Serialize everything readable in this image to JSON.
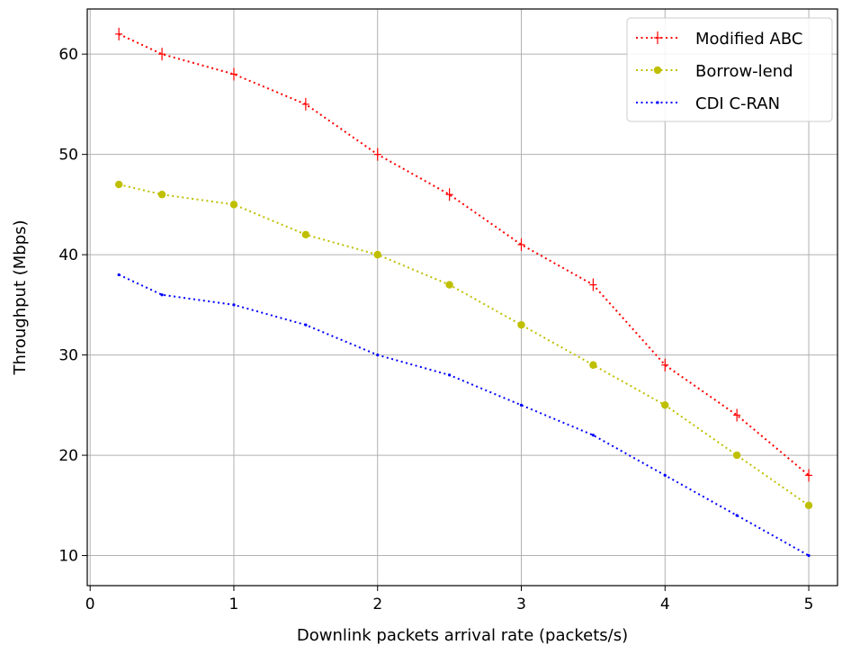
{
  "chart_data": {
    "type": "line",
    "xlabel": "Downlink packets arrival rate (packets/s)",
    "ylabel": "Throughput (Mbps)",
    "xlim": [
      -0.02,
      5.2
    ],
    "ylim": [
      7,
      64.5
    ],
    "xticks": [
      0,
      1,
      2,
      3,
      4,
      5
    ],
    "yticks": [
      10,
      20,
      30,
      40,
      50,
      60
    ],
    "xtick_labels": [
      "0",
      "1",
      "2",
      "3",
      "4",
      "5"
    ],
    "ytick_labels": [
      "10",
      "20",
      "30",
      "40",
      "50",
      "60"
    ],
    "grid": true,
    "legend_position": "top-right",
    "series": [
      {
        "name": "Modified ABC",
        "color": "#ff0000",
        "marker": "plus",
        "x": [
          0.2,
          0.5,
          1,
          1.5,
          2,
          2.5,
          3,
          3.5,
          4,
          4.5,
          5
        ],
        "y": [
          62,
          60,
          58,
          55,
          50,
          46,
          41,
          37,
          29,
          24,
          18
        ]
      },
      {
        "name": "Borrow-lend",
        "color": "#bfbf00",
        "marker": "circle",
        "x": [
          0.2,
          0.5,
          1,
          1.5,
          2,
          2.5,
          3,
          3.5,
          4,
          4.5,
          5
        ],
        "y": [
          47,
          46,
          45,
          42,
          40,
          37,
          33,
          29,
          25,
          20,
          15
        ]
      },
      {
        "name": "CDI C-RAN",
        "color": "#0000ff",
        "marker": "point",
        "x": [
          0.2,
          0.5,
          1,
          1.5,
          2,
          2.5,
          3,
          3.5,
          4,
          4.5,
          5
        ],
        "y": [
          38,
          36,
          35,
          33,
          30,
          28,
          25,
          22,
          18,
          14,
          10
        ]
      }
    ]
  }
}
